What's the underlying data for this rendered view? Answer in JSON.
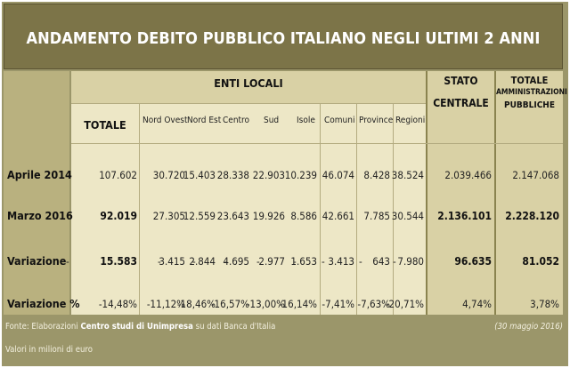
{
  "title": "ANDAMENTO DEBITO PUBBLICO ITALIANO NEGLI ULTIMI 2 ANNI",
  "headers": {
    "enti_locali": "ENTI LOCALI",
    "totale": "TOTALE",
    "stato_centrale_1": "STATO",
    "stato_centrale_2": "CENTRALE",
    "totale_amm_1": "TOTALE",
    "totale_amm_2": "AMMINISTRAZIONI",
    "totale_amm_3": "PUBBLICHE",
    "sub": [
      "Nord Ovest",
      "Nord Est",
      "Centro",
      "Sud",
      "Isole",
      "Comuni",
      "Province",
      "Regioni"
    ]
  },
  "rows": [
    {
      "label": "Aprile 2014",
      "totale": "107.602",
      "values": [
        "30.720",
        "15.403",
        "28.338",
        "22.903",
        "10.239",
        "46.074",
        "8.428",
        "38.524"
      ],
      "stato": "2.039.466",
      "amm": "2.147.068"
    },
    {
      "label": "Marzo 2016",
      "totale": "92.019",
      "values": [
        "27.305",
        "12.559",
        "23.643",
        "19.926",
        "8.586",
        "42.661",
        "7.785",
        "30.544"
      ],
      "stato": "2.136.101",
      "amm": "2.228.120"
    },
    {
      "label": "Variazione",
      "totale": "15.583",
      "values": [
        "3.415",
        "2.844",
        "4.695",
        "2.977",
        "1.653",
        "3.413",
        "643",
        "7.980"
      ],
      "stato": "96.635",
      "amm": "81.052"
    },
    {
      "label": "Variazione %",
      "totale": "-14,48%",
      "values": [
        "-11,12%",
        "-18,46%",
        "-16,57%",
        "-13,00%",
        "-16,14%",
        "-7,41%",
        "-7,63%",
        "-20,71%"
      ],
      "stato": "4,74%",
      "amm": "3,78%"
    }
  ],
  "footer": {
    "source_prefix": "Fonte: Elaborazioni ",
    "source_bold": "Centro studi di Unimpresa",
    "source_suffix": " su dati Banca d'Italia",
    "date": "(30 maggio 2016)",
    "units": "Valori in milioni di euro"
  },
  "colors": {
    "frame": "#9b966a",
    "title_bg": "#7c7448",
    "cell_light": "#ede7c6",
    "cell_mid": "#d9d1a5"
  }
}
